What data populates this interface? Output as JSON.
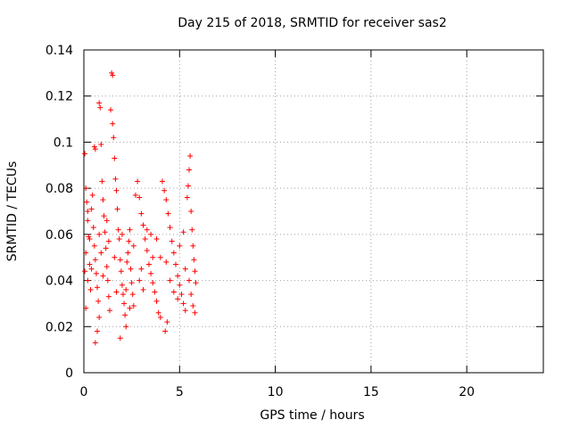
{
  "chart_data": {
    "type": "scatter",
    "title": "Day 215 of 2018, SRMTID for receiver sas2",
    "xlabel": "GPS time / hours",
    "ylabel": "SRMTID / TECUs",
    "xlim": [
      0,
      24
    ],
    "ylim": [
      0,
      0.14
    ],
    "xticks": [
      0,
      5,
      10,
      15,
      20
    ],
    "xtick_labels": [
      "0",
      "5",
      "10",
      "15",
      "20"
    ],
    "yticks": [
      0,
      0.02,
      0.04,
      0.06,
      0.08,
      0.1,
      0.12,
      0.14
    ],
    "ytick_labels": [
      "0",
      "0.02",
      "0.04",
      "0.06",
      "0.08",
      "0.1",
      "0.12",
      "0.14"
    ],
    "grid": true,
    "marker": "plus",
    "marker_color": "#ff0000",
    "series": [
      {
        "name": "sas2",
        "points": [
          [
            0.05,
            0.095
          ],
          [
            0.1,
            0.08
          ],
          [
            0.15,
            0.074
          ],
          [
            0.2,
            0.066
          ],
          [
            0.25,
            0.059
          ],
          [
            0.1,
            0.052
          ],
          [
            0.3,
            0.047
          ],
          [
            0.05,
            0.044
          ],
          [
            0.2,
            0.04
          ],
          [
            0.35,
            0.036
          ],
          [
            0.1,
            0.028
          ],
          [
            0.4,
            0.071
          ],
          [
            0.45,
            0.077
          ],
          [
            0.5,
            0.063
          ],
          [
            0.55,
            0.055
          ],
          [
            0.6,
            0.049
          ],
          [
            0.65,
            0.043
          ],
          [
            0.7,
            0.037
          ],
          [
            0.75,
            0.031
          ],
          [
            0.8,
            0.024
          ],
          [
            0.6,
            0.013
          ],
          [
            0.7,
            0.018
          ],
          [
            0.55,
            0.098
          ],
          [
            0.6,
            0.097
          ],
          [
            0.8,
            0.117
          ],
          [
            0.85,
            0.115
          ],
          [
            0.9,
            0.099
          ],
          [
            0.95,
            0.083
          ],
          [
            1.0,
            0.075
          ],
          [
            1.05,
            0.068
          ],
          [
            1.1,
            0.061
          ],
          [
            1.15,
            0.054
          ],
          [
            1.2,
            0.046
          ],
          [
            1.25,
            0.04
          ],
          [
            1.3,
            0.033
          ],
          [
            1.35,
            0.027
          ],
          [
            1.4,
            0.114
          ],
          [
            1.45,
            0.13
          ],
          [
            1.5,
            0.129
          ],
          [
            1.5,
            0.108
          ],
          [
            1.55,
            0.102
          ],
          [
            1.6,
            0.093
          ],
          [
            1.65,
            0.084
          ],
          [
            1.7,
            0.079
          ],
          [
            1.75,
            0.071
          ],
          [
            1.8,
            0.062
          ],
          [
            1.85,
            0.058
          ],
          [
            1.9,
            0.049
          ],
          [
            1.95,
            0.044
          ],
          [
            2.0,
            0.038
          ],
          [
            2.05,
            0.034
          ],
          [
            2.1,
            0.03
          ],
          [
            2.15,
            0.025
          ],
          [
            2.2,
            0.02
          ],
          [
            1.9,
            0.015
          ],
          [
            2.25,
            0.048
          ],
          [
            2.3,
            0.052
          ],
          [
            2.35,
            0.057
          ],
          [
            2.4,
            0.062
          ],
          [
            2.45,
            0.045
          ],
          [
            2.5,
            0.039
          ],
          [
            2.55,
            0.034
          ],
          [
            2.6,
            0.029
          ],
          [
            2.7,
            0.077
          ],
          [
            2.8,
            0.083
          ],
          [
            2.9,
            0.076
          ],
          [
            3.0,
            0.069
          ],
          [
            3.1,
            0.064
          ],
          [
            3.2,
            0.058
          ],
          [
            3.3,
            0.053
          ],
          [
            3.4,
            0.047
          ],
          [
            3.5,
            0.043
          ],
          [
            3.6,
            0.039
          ],
          [
            3.7,
            0.035
          ],
          [
            3.8,
            0.031
          ],
          [
            3.9,
            0.026
          ],
          [
            4.0,
            0.024
          ],
          [
            4.1,
            0.083
          ],
          [
            4.2,
            0.079
          ],
          [
            4.3,
            0.075
          ],
          [
            4.4,
            0.069
          ],
          [
            4.5,
            0.063
          ],
          [
            4.6,
            0.057
          ],
          [
            4.7,
            0.052
          ],
          [
            4.8,
            0.047
          ],
          [
            4.9,
            0.042
          ],
          [
            5.0,
            0.038
          ],
          [
            5.1,
            0.034
          ],
          [
            5.2,
            0.03
          ],
          [
            5.3,
            0.027
          ],
          [
            4.25,
            0.018
          ],
          [
            4.35,
            0.022
          ],
          [
            5.4,
            0.076
          ],
          [
            5.45,
            0.081
          ],
          [
            5.5,
            0.088
          ],
          [
            5.55,
            0.094
          ],
          [
            5.6,
            0.07
          ],
          [
            5.65,
            0.062
          ],
          [
            5.7,
            0.055
          ],
          [
            5.75,
            0.049
          ],
          [
            5.8,
            0.044
          ],
          [
            5.85,
            0.039
          ],
          [
            5.6,
            0.034
          ],
          [
            5.7,
            0.029
          ],
          [
            5.8,
            0.026
          ],
          [
            0.3,
            0.058
          ],
          [
            0.9,
            0.052
          ],
          [
            1.2,
            0.066
          ],
          [
            1.6,
            0.05
          ],
          [
            2.0,
            0.06
          ],
          [
            2.6,
            0.055
          ],
          [
            3.0,
            0.045
          ],
          [
            3.5,
            0.06
          ],
          [
            4.0,
            0.05
          ],
          [
            4.5,
            0.04
          ],
          [
            5.0,
            0.055
          ],
          [
            5.3,
            0.045
          ],
          [
            2.2,
            0.036
          ],
          [
            2.9,
            0.04
          ],
          [
            3.3,
            0.062
          ],
          [
            3.8,
            0.058
          ],
          [
            4.3,
            0.048
          ],
          [
            4.7,
            0.035
          ],
          [
            5.2,
            0.061
          ],
          [
            1.0,
            0.042
          ],
          [
            0.4,
            0.045
          ],
          [
            0.8,
            0.06
          ],
          [
            1.7,
            0.035
          ],
          [
            2.4,
            0.028
          ],
          [
            3.6,
            0.05
          ],
          [
            4.9,
            0.032
          ],
          [
            5.5,
            0.04
          ],
          [
            0.2,
            0.07
          ],
          [
            1.3,
            0.057
          ],
          [
            3.1,
            0.036
          ]
        ]
      }
    ]
  }
}
